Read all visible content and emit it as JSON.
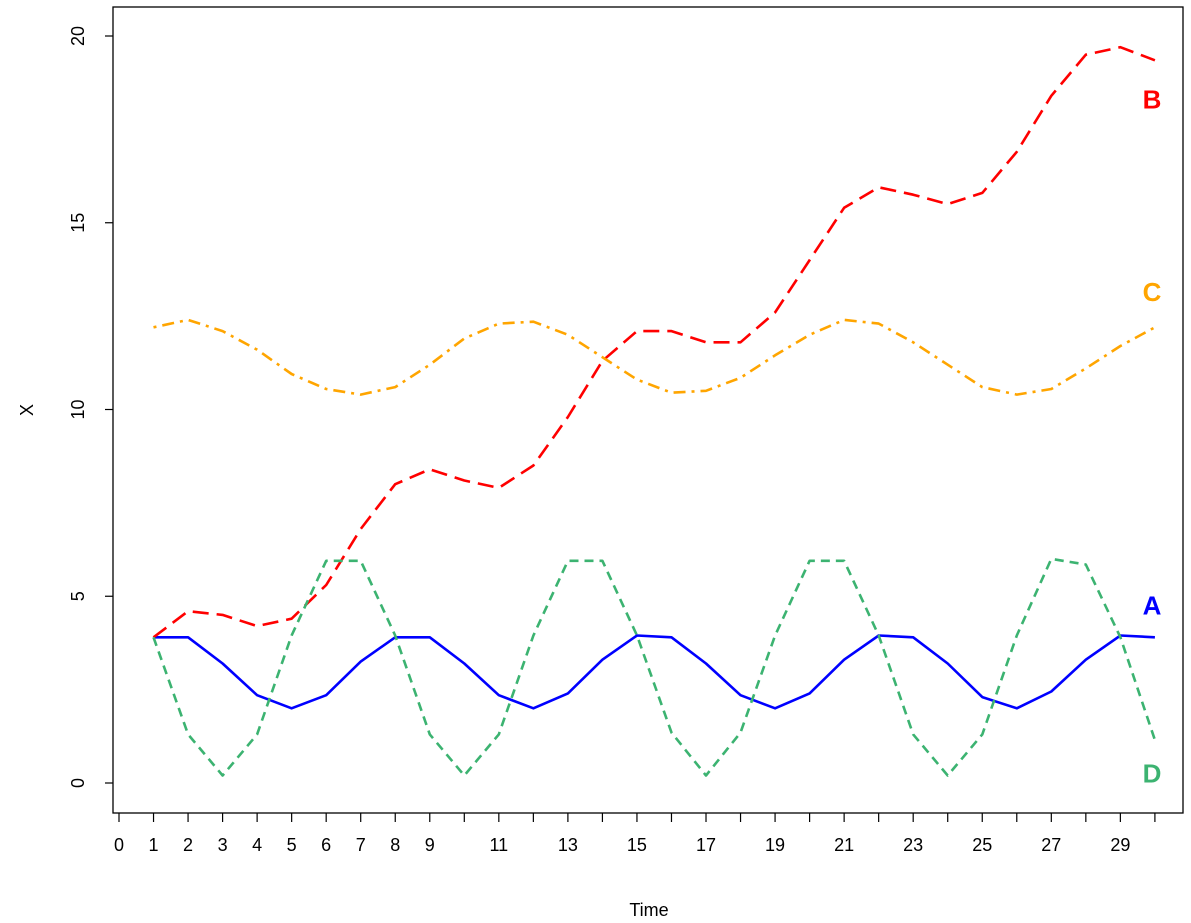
{
  "chart_data": {
    "type": "line",
    "title": "",
    "xlabel": "Time",
    "ylabel": "X",
    "xlim": [
      0,
      30
    ],
    "ylim": [
      0,
      20
    ],
    "x_ticks": [
      0,
      1,
      2,
      3,
      4,
      5,
      6,
      7,
      8,
      9,
      10,
      11,
      12,
      13,
      14,
      15,
      16,
      17,
      18,
      19,
      20,
      21,
      22,
      23,
      24,
      25,
      26,
      27,
      28,
      29,
      30
    ],
    "x_tick_labels": [
      "0",
      "1",
      "2",
      "3",
      "4",
      "5",
      "6",
      "7",
      "8",
      "9",
      "",
      "11",
      "",
      "13",
      "",
      "15",
      "",
      "17",
      "",
      "19",
      "",
      "21",
      "",
      "23",
      "",
      "25",
      "",
      "27",
      "",
      "29",
      ""
    ],
    "y_ticks": [
      0,
      5,
      10,
      15,
      20
    ],
    "y_tick_labels": [
      "0",
      "5",
      "10",
      "15",
      "20"
    ],
    "grid": false,
    "x": [
      1,
      2,
      3,
      4,
      5,
      6,
      7,
      8,
      9,
      10,
      11,
      12,
      13,
      14,
      15,
      16,
      17,
      18,
      19,
      20,
      21,
      22,
      23,
      24,
      25,
      26,
      27,
      28,
      29,
      30
    ],
    "series": [
      {
        "name": "A",
        "color": "#0000ff",
        "dash": "solid",
        "values": [
          3.9,
          3.9,
          3.2,
          2.35,
          2.0,
          2.35,
          3.25,
          3.9,
          3.9,
          3.2,
          2.35,
          2.0,
          2.4,
          3.3,
          3.95,
          3.9,
          3.2,
          2.35,
          2.0,
          2.4,
          3.3,
          3.95,
          3.9,
          3.2,
          2.3,
          2.0,
          2.45,
          3.3,
          3.95,
          3.9
        ]
      },
      {
        "name": "B",
        "color": "#ff0000",
        "dash": "long-dash",
        "values": [
          3.9,
          4.6,
          4.5,
          4.2,
          4.4,
          5.3,
          6.8,
          8.0,
          8.4,
          8.1,
          7.9,
          8.5,
          9.8,
          11.3,
          12.1,
          12.1,
          11.8,
          11.8,
          12.6,
          14.0,
          15.4,
          15.95,
          15.75,
          15.5,
          15.8,
          16.9,
          18.4,
          19.5,
          19.7,
          19.35
        ]
      },
      {
        "name": "C",
        "color": "#ffa500",
        "dash": "dot-dash",
        "values": [
          12.2,
          12.4,
          12.1,
          11.6,
          10.95,
          10.55,
          10.4,
          10.6,
          11.2,
          11.9,
          12.3,
          12.35,
          12.0,
          11.4,
          10.8,
          10.45,
          10.5,
          10.85,
          11.45,
          12.0,
          12.4,
          12.3,
          11.8,
          11.2,
          10.6,
          10.4,
          10.55,
          11.1,
          11.7,
          12.2
        ]
      },
      {
        "name": "D",
        "color": "#3cb371",
        "dash": "short-dash",
        "values": [
          3.9,
          1.3,
          0.2,
          1.3,
          3.95,
          5.95,
          5.95,
          3.95,
          1.3,
          0.2,
          1.3,
          3.95,
          5.95,
          5.95,
          3.95,
          1.35,
          0.2,
          1.35,
          3.95,
          5.95,
          5.95,
          3.95,
          1.3,
          0.2,
          1.3,
          3.95,
          6.0,
          5.85,
          3.9,
          1.15
        ]
      }
    ]
  }
}
